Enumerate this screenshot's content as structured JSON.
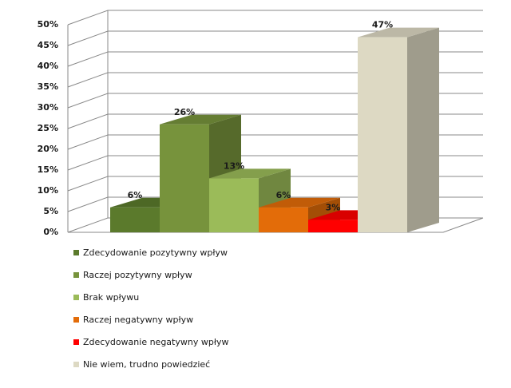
{
  "chart_data": {
    "type": "bar3d",
    "ylim": [
      0,
      50
    ],
    "yticks": [
      {
        "value": 0,
        "label": "0%"
      },
      {
        "value": 5,
        "label": "5%"
      },
      {
        "value": 10,
        "label": "10%"
      },
      {
        "value": 15,
        "label": "15%"
      },
      {
        "value": 20,
        "label": "20%"
      },
      {
        "value": 25,
        "label": "25%"
      },
      {
        "value": 30,
        "label": "30%"
      },
      {
        "value": 35,
        "label": "35%"
      },
      {
        "value": 40,
        "label": "40%"
      },
      {
        "value": 45,
        "label": "45%"
      },
      {
        "value": 50,
        "label": "50%"
      }
    ],
    "grid": true,
    "series": [
      {
        "name": "Zdecydowanie pozytywny wpływ",
        "color": "#5b7a2c",
        "values": [
          6
        ],
        "value_labels": [
          "6%"
        ]
      },
      {
        "name": "Raczej pozytywny wpływ",
        "color": "#77933c",
        "values": [
          26
        ],
        "value_labels": [
          "26%"
        ]
      },
      {
        "name": "Brak wpływu",
        "color": "#9bbb59",
        "values": [
          13
        ],
        "value_labels": [
          "13%"
        ]
      },
      {
        "name": "Raczej negatywny wpływ",
        "color": "#e36c09",
        "values": [
          6
        ],
        "value_labels": [
          "6%"
        ]
      },
      {
        "name": "Zdecydowanie negatywny wpływ",
        "color": "#ff0000",
        "values": [
          3
        ],
        "value_labels": [
          "3%"
        ]
      },
      {
        "name": "Nie wiem, trudno powiedzieć",
        "color": "#ddd9c3",
        "values": [
          47
        ],
        "value_labels": [
          "47%"
        ]
      }
    ]
  }
}
